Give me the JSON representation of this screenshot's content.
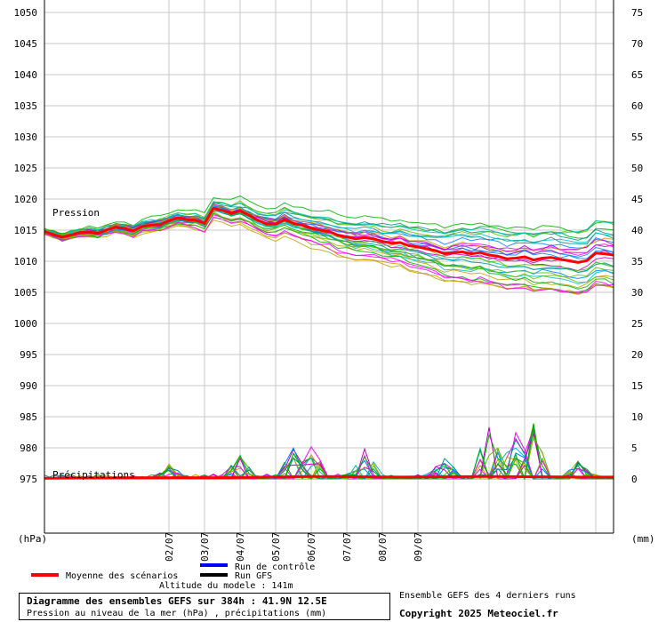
{
  "chart_data": {
    "type": "line",
    "y_left_ticks": [
      "1050",
      "1045",
      "1040",
      "1035",
      "1030",
      "1025",
      "1020",
      "1015",
      "1010",
      "1005",
      "1000",
      "995",
      "990",
      "985",
      "980",
      "975"
    ],
    "y_right_ticks": [
      "75",
      "70",
      "65",
      "60",
      "55",
      "50",
      "45",
      "40",
      "35",
      "30",
      "25",
      "20",
      "15",
      "10",
      "5",
      "0"
    ],
    "y_left_unit": "(hPa)",
    "y_right_unit": "(mm)",
    "ylim_left": [
      975,
      1050
    ],
    "ylim_right": [
      0,
      75
    ],
    "x_tick_labels": [
      "02/07",
      "03/07",
      "04/07",
      "05/07",
      "06/07",
      "07/07",
      "08/07",
      "09/07"
    ],
    "x_range_hours": [
      0,
      384
    ],
    "x_day_first_tick_hour": 84,
    "grid": true,
    "annotations": {
      "pressure": "Pression",
      "precip": "Précipitations"
    },
    "mean_pressure": {
      "x_hours": [
        0,
        6,
        12,
        18,
        24,
        30,
        36,
        42,
        48,
        54,
        60,
        66,
        72,
        78,
        84,
        90,
        96,
        102,
        108,
        114,
        120,
        126,
        132,
        138,
        144,
        150,
        156,
        162,
        168,
        174,
        180,
        186,
        192,
        198,
        204,
        210,
        216,
        222,
        228,
        234,
        240,
        246,
        252,
        258,
        264,
        270,
        276,
        282,
        288,
        294,
        300,
        306,
        312,
        318,
        324,
        330,
        336,
        342,
        348,
        354,
        360,
        366,
        372,
        378,
        384
      ],
      "values": [
        1014.8,
        1014.3,
        1013.9,
        1014.2,
        1014.6,
        1014.7,
        1014.5,
        1015.0,
        1015.5,
        1015.3,
        1014.9,
        1015.6,
        1015.8,
        1015.9,
        1016.5,
        1017.0,
        1016.7,
        1016.6,
        1016.1,
        1018.5,
        1018.2,
        1017.7,
        1018.1,
        1017.4,
        1016.6,
        1016.0,
        1016.0,
        1016.7,
        1016.1,
        1015.8,
        1015.3,
        1015.0,
        1014.8,
        1014.2,
        1013.9,
        1013.6,
        1013.8,
        1013.6,
        1013.2,
        1012.9,
        1013.0,
        1012.5,
        1012.3,
        1012.0,
        1011.7,
        1011.2,
        1011.4,
        1011.5,
        1011.2,
        1011.4,
        1011.0,
        1010.8,
        1010.4,
        1010.5,
        1010.7,
        1010.2,
        1010.5,
        1010.6,
        1010.3,
        1010.1,
        1009.8,
        1010.1,
        1011.3,
        1011.2,
        1011.0
      ]
    },
    "mean_precip": {
      "x_hours": [
        0,
        60,
        120,
        180,
        240,
        300,
        360,
        384
      ],
      "values": [
        0.1,
        0.2,
        0.2,
        0.4,
        0.3,
        0.4,
        0.3,
        0.3
      ]
    },
    "members_pressure_spread_hpa": {
      "x_hours": [
        0,
        48,
        96,
        144,
        192,
        240,
        288,
        336,
        384
      ],
      "low": [
        1013.0,
        1013.5,
        1014.5,
        1015.0,
        1011.0,
        1008.5,
        1005.0,
        1004.5,
        1006.0
      ],
      "high": [
        1016.0,
        1016.8,
        1018.0,
        1020.0,
        1017.5,
        1016.0,
        1014.5,
        1014.5,
        1016.0
      ]
    },
    "members_precip_peaks_mm": [
      {
        "x_hour": 84,
        "value": 2.5
      },
      {
        "x_hour": 132,
        "value": 4.0
      },
      {
        "x_hour": 168,
        "value": 5.0
      },
      {
        "x_hour": 180,
        "value": 5.5
      },
      {
        "x_hour": 216,
        "value": 5.0
      },
      {
        "x_hour": 270,
        "value": 3.5
      },
      {
        "x_hour": 300,
        "value": 9.0
      },
      {
        "x_hour": 318,
        "value": 7.5
      },
      {
        "x_hour": 330,
        "value": 9.0
      },
      {
        "x_hour": 360,
        "value": 3.0
      }
    ],
    "member_colors": [
      "#00b000",
      "#0080ff",
      "#00c0c0",
      "#c000c0",
      "#c0a000",
      "#60c000",
      "#ff00ff",
      "#009090"
    ],
    "colors": {
      "mean": "#ff0000",
      "control": "#0000ff",
      "gfs": "#000000",
      "grid": "#c8c8c8"
    },
    "legend": {
      "mean": "Moyenne des scénarios",
      "control": "Run de contrôle",
      "gfs": "Run GFS"
    }
  },
  "footer": {
    "altitude": "Altitude du modele : 141m",
    "title_line1": "Diagramme des ensembles GEFS sur 384h : 41.9N 12.5E",
    "title_line2": "Pression au niveau de la mer (hPa) , précipitations (mm)",
    "side_line1": "Ensemble GEFS des 4 derniers runs",
    "side_line2": "Copyright 2025 Meteociel.fr"
  }
}
